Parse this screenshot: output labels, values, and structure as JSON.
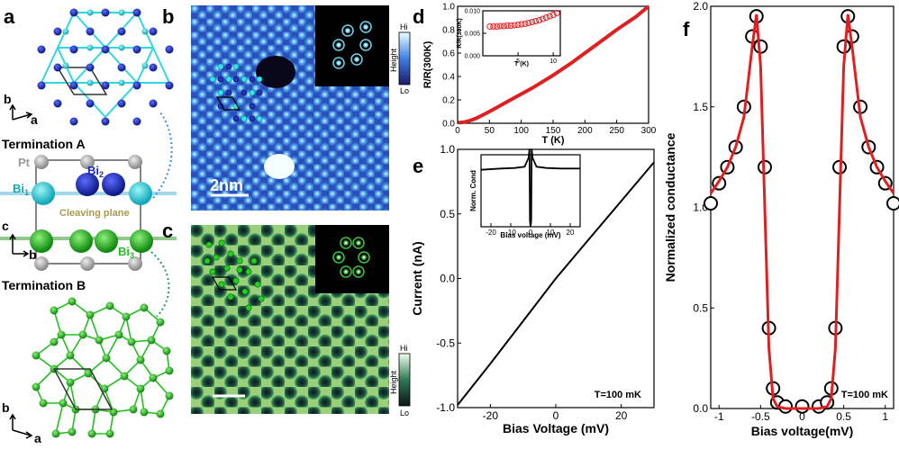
{
  "panel_labels": {
    "a": "a",
    "b": "b",
    "c": "c",
    "d": "d",
    "e": "e",
    "f": "f"
  },
  "panel_a": {
    "termination_a": "Termination A",
    "termination_b": "Termination B",
    "axis_b": "b",
    "axis_a": "a",
    "axis_c": "c",
    "pt": "Pt",
    "bi1": "Bi",
    "bi1_sub": "1",
    "bi2": "Bi",
    "bi2_sub": "2",
    "bi3": "Bi",
    "bi3_sub": "3",
    "cleaving_plane": "Cleaving plane",
    "colors": {
      "bi1": "#2fd8e0",
      "bi2": "#1e2db8",
      "bi3": "#22c01e",
      "pt": "#b4b4b4"
    }
  },
  "panel_b": {
    "scale_label": "2nm",
    "colorbar_title": "Height",
    "colorbar_hi": "Hi",
    "colorbar_lo": "Lo"
  },
  "panel_c": {
    "colorbar_title": "Height",
    "colorbar_hi": "Hi",
    "colorbar_lo": "Lo"
  },
  "chart_data": [
    {
      "id": "d",
      "type": "line",
      "xlabel": "T (K)",
      "ylabel": "R/R(300K)",
      "xlim": [
        0,
        300
      ],
      "ylim": [
        0,
        1.0
      ],
      "xticks": [
        0,
        50,
        100,
        150,
        200,
        250,
        300
      ],
      "yticks": [
        0.0,
        0.2,
        0.4,
        0.6,
        0.8,
        1.0
      ],
      "series": [
        {
          "name": "R/R(300K)",
          "color": "#e02020",
          "x": [
            1,
            5,
            10,
            15,
            20,
            25,
            30,
            40,
            50,
            60,
            80,
            100,
            120,
            150,
            180,
            200,
            220,
            250,
            280,
            300
          ],
          "y": [
            0.005,
            0.007,
            0.01,
            0.016,
            0.024,
            0.034,
            0.045,
            0.072,
            0.1,
            0.13,
            0.19,
            0.25,
            0.31,
            0.41,
            0.52,
            0.6,
            0.68,
            0.8,
            0.91,
            1.0
          ]
        }
      ],
      "inset": {
        "type": "scatter",
        "xlabel": "T (K)",
        "ylabel": "R/R(300K)",
        "xlim": [
          0,
          11
        ],
        "ylim": [
          0,
          0.01
        ],
        "xticks": [
          5,
          10
        ],
        "yticks": [
          0.0,
          0.005,
          0.01
        ],
        "ytick_labels": [
          "0.000",
          "0.005",
          "0.010"
        ],
        "x": [
          1.0,
          1.5,
          2.0,
          2.5,
          3.0,
          3.5,
          4.0,
          4.5,
          5.0,
          5.5,
          6.0,
          6.5,
          7.0,
          7.5,
          8.0,
          8.5,
          9.0,
          9.5,
          10.0,
          10.5
        ],
        "y": [
          0.0065,
          0.0065,
          0.0065,
          0.0066,
          0.0066,
          0.0067,
          0.0067,
          0.0068,
          0.0069,
          0.007,
          0.0071,
          0.0073,
          0.0075,
          0.0077,
          0.0079,
          0.0082,
          0.0085,
          0.0088,
          0.0091,
          0.0095
        ]
      }
    },
    {
      "id": "e",
      "type": "line",
      "xlabel": "Bias Voltage (mV)",
      "ylabel": "Current (nA)",
      "xlim": [
        -30,
        30
      ],
      "ylim": [
        -1.0,
        1.0
      ],
      "xticks": [
        -20,
        0,
        20
      ],
      "yticks": [
        -1.0,
        -0.5,
        0.0,
        0.5,
        1.0
      ],
      "annotation": "T=100 mK",
      "series": [
        {
          "name": "I-V",
          "color": "#000000",
          "x": [
            -30,
            -20,
            -10,
            0,
            10,
            20,
            30
          ],
          "y": [
            -0.98,
            -0.66,
            -0.33,
            0.0,
            0.3,
            0.6,
            0.9
          ]
        }
      ],
      "inset": {
        "type": "line",
        "xlabel": "Bias voltage (mV)",
        "ylabel": "Norm. Cond",
        "xlim": [
          -25,
          25
        ],
        "ylim": [
          0,
          1.2
        ],
        "xticks": [
          -20,
          -10,
          0,
          10,
          20
        ],
        "x": [
          -25,
          -15,
          -8,
          -3,
          -1,
          -0.55,
          -0.3,
          0,
          0.3,
          0.55,
          1,
          3,
          8,
          15,
          25
        ],
        "y": [
          0.95,
          0.97,
          0.98,
          1.0,
          1.15,
          1.3,
          0.1,
          0.0,
          0.1,
          1.3,
          1.15,
          1.0,
          0.98,
          0.97,
          0.97
        ]
      }
    },
    {
      "id": "f",
      "type": "scatter",
      "xlabel": "Bias voltage(mV)",
      "ylabel": "Normalized conductance",
      "xlim": [
        -1.1,
        1.1
      ],
      "ylim": [
        0,
        2.0
      ],
      "xticks": [
        -1.0,
        -0.5,
        0.0,
        0.5,
        1.0
      ],
      "yticks": [
        0.0,
        0.5,
        1.0,
        1.5,
        2.0
      ],
      "annotation": "T=100 mK",
      "series": [
        {
          "name": "data",
          "marker": "open-circle",
          "color": "#000000",
          "x": [
            -1.1,
            -1.0,
            -0.9,
            -0.8,
            -0.7,
            -0.6,
            -0.55,
            -0.5,
            -0.45,
            -0.4,
            -0.35,
            -0.3,
            -0.2,
            0.0,
            0.2,
            0.3,
            0.35,
            0.4,
            0.45,
            0.5,
            0.55,
            0.6,
            0.7,
            0.8,
            0.9,
            1.0,
            1.1
          ],
          "y": [
            1.02,
            1.12,
            1.2,
            1.3,
            1.5,
            1.85,
            1.95,
            1.8,
            1.2,
            0.4,
            0.1,
            0.03,
            0.01,
            0.01,
            0.01,
            0.03,
            0.1,
            0.4,
            1.2,
            1.8,
            1.95,
            1.85,
            1.5,
            1.3,
            1.2,
            1.12,
            1.02
          ]
        },
        {
          "name": "fit",
          "color": "#e02020",
          "x": [
            -1.1,
            -1.0,
            -0.9,
            -0.8,
            -0.7,
            -0.6,
            -0.55,
            -0.5,
            -0.45,
            -0.4,
            -0.35,
            -0.3,
            -0.2,
            0.0,
            0.2,
            0.3,
            0.35,
            0.4,
            0.45,
            0.5,
            0.55,
            0.6,
            0.7,
            0.8,
            0.9,
            1.0,
            1.1
          ],
          "y": [
            1.07,
            1.13,
            1.2,
            1.3,
            1.45,
            1.8,
            1.96,
            1.7,
            1.0,
            0.3,
            0.05,
            0.01,
            0.0,
            0.0,
            0.0,
            0.01,
            0.05,
            0.3,
            1.0,
            1.7,
            1.96,
            1.8,
            1.45,
            1.3,
            1.2,
            1.13,
            1.07
          ]
        }
      ]
    }
  ]
}
